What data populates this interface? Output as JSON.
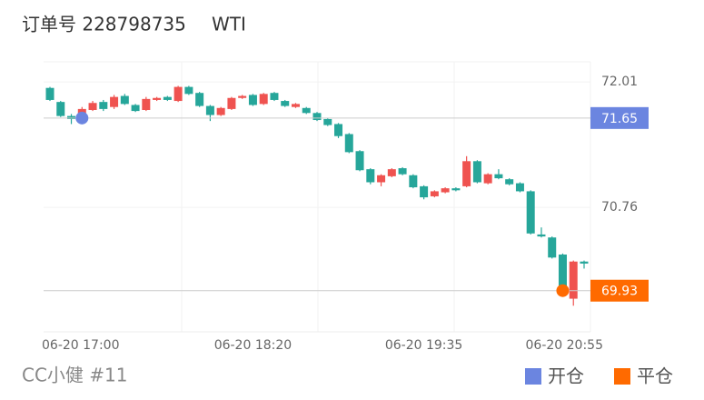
{
  "chart_data": {
    "type": "candlestick",
    "title": "订单号 228798735",
    "symbol": "WTI",
    "categories": [
      "06-20 17:00",
      null,
      null,
      null,
      null,
      null,
      null,
      null,
      null,
      null,
      null,
      null,
      null,
      null,
      null,
      null,
      null,
      null,
      null,
      "06-20 18:20",
      null,
      null,
      null,
      null,
      null,
      null,
      null,
      null,
      null,
      null,
      null,
      null,
      null,
      null,
      null,
      "06-20 19:35",
      null,
      null,
      null,
      null,
      null,
      null,
      null,
      null,
      null,
      null,
      null,
      null,
      null,
      null,
      "06-20 20:55"
    ],
    "open": [
      71.95,
      71.81,
      71.67,
      71.65,
      71.73,
      71.81,
      71.76,
      71.87,
      71.78,
      71.73,
      71.83,
      71.86,
      71.82,
      71.96,
      71.9,
      71.77,
      71.68,
      71.74,
      71.85,
      71.88,
      71.79,
      71.9,
      71.82,
      71.76,
      71.75,
      71.7,
      71.64,
      71.59,
      71.49,
      71.32,
      71.14,
      71.01,
      71.07,
      71.15,
      71.08,
      70.97,
      70.87,
      70.91,
      70.95,
      70.97,
      71.22,
      71.0,
      71.09,
      71.04,
      71.0,
      70.92,
      70.49,
      70.46,
      70.29,
      69.85,
      70.22
    ],
    "high": [
      71.96,
      71.82,
      71.69,
      71.76,
      71.82,
      71.83,
      71.88,
      71.89,
      71.79,
      71.86,
      71.86,
      71.87,
      71.97,
      71.97,
      71.91,
      71.78,
      71.76,
      71.86,
      71.88,
      71.89,
      71.9,
      71.91,
      71.83,
      71.8,
      71.76,
      71.71,
      71.65,
      71.6,
      71.5,
      71.33,
      71.15,
      71.09,
      71.15,
      71.16,
      71.09,
      70.98,
      70.93,
      70.96,
      70.96,
      71.27,
      71.23,
      71.1,
      71.14,
      71.05,
      71.01,
      70.93,
      70.56,
      70.47,
      70.3,
      70.23,
      70.23
    ],
    "low": [
      71.82,
      71.66,
      71.59,
      71.64,
      71.72,
      71.72,
      71.74,
      71.78,
      71.71,
      71.72,
      71.82,
      71.82,
      71.81,
      71.88,
      71.76,
      71.62,
      71.67,
      71.73,
      71.84,
      71.77,
      71.78,
      71.82,
      71.76,
      71.75,
      71.69,
      71.62,
      71.57,
      71.45,
      71.3,
      71.12,
      70.99,
      70.97,
      71.06,
      71.08,
      70.95,
      70.84,
      70.86,
      70.9,
      70.92,
      70.96,
      71.0,
      70.99,
      71.04,
      70.98,
      70.91,
      70.49,
      70.46,
      70.25,
      69.91,
      69.78,
      70.15
    ],
    "close": [
      71.83,
      71.67,
      71.64,
      71.74,
      71.8,
      71.74,
      71.86,
      71.79,
      71.72,
      71.84,
      71.85,
      71.83,
      71.96,
      71.89,
      71.77,
      71.68,
      71.75,
      71.85,
      71.87,
      71.78,
      71.89,
      71.83,
      71.77,
      71.79,
      71.7,
      71.63,
      71.58,
      71.47,
      71.31,
      71.13,
      71.01,
      71.08,
      71.14,
      71.09,
      70.96,
      70.86,
      70.92,
      70.95,
      70.93,
      71.22,
      71.01,
      71.09,
      71.05,
      70.99,
      70.92,
      70.5,
      70.47,
      70.26,
      69.93,
      70.22,
      70.2
    ],
    "up_color": "#ef5350",
    "down_color": "#26a69a",
    "ylim": [
      69.52,
      72.21
    ],
    "yticks": [
      72.01,
      70.76
    ],
    "markers": [
      {
        "name": "开仓",
        "color": "#6b85e0",
        "value": 71.65,
        "index": 3
      },
      {
        "name": "平仓",
        "color": "#ff6a00",
        "value": 69.93,
        "index": 48
      }
    ],
    "watermark": "CC小健 #11"
  }
}
